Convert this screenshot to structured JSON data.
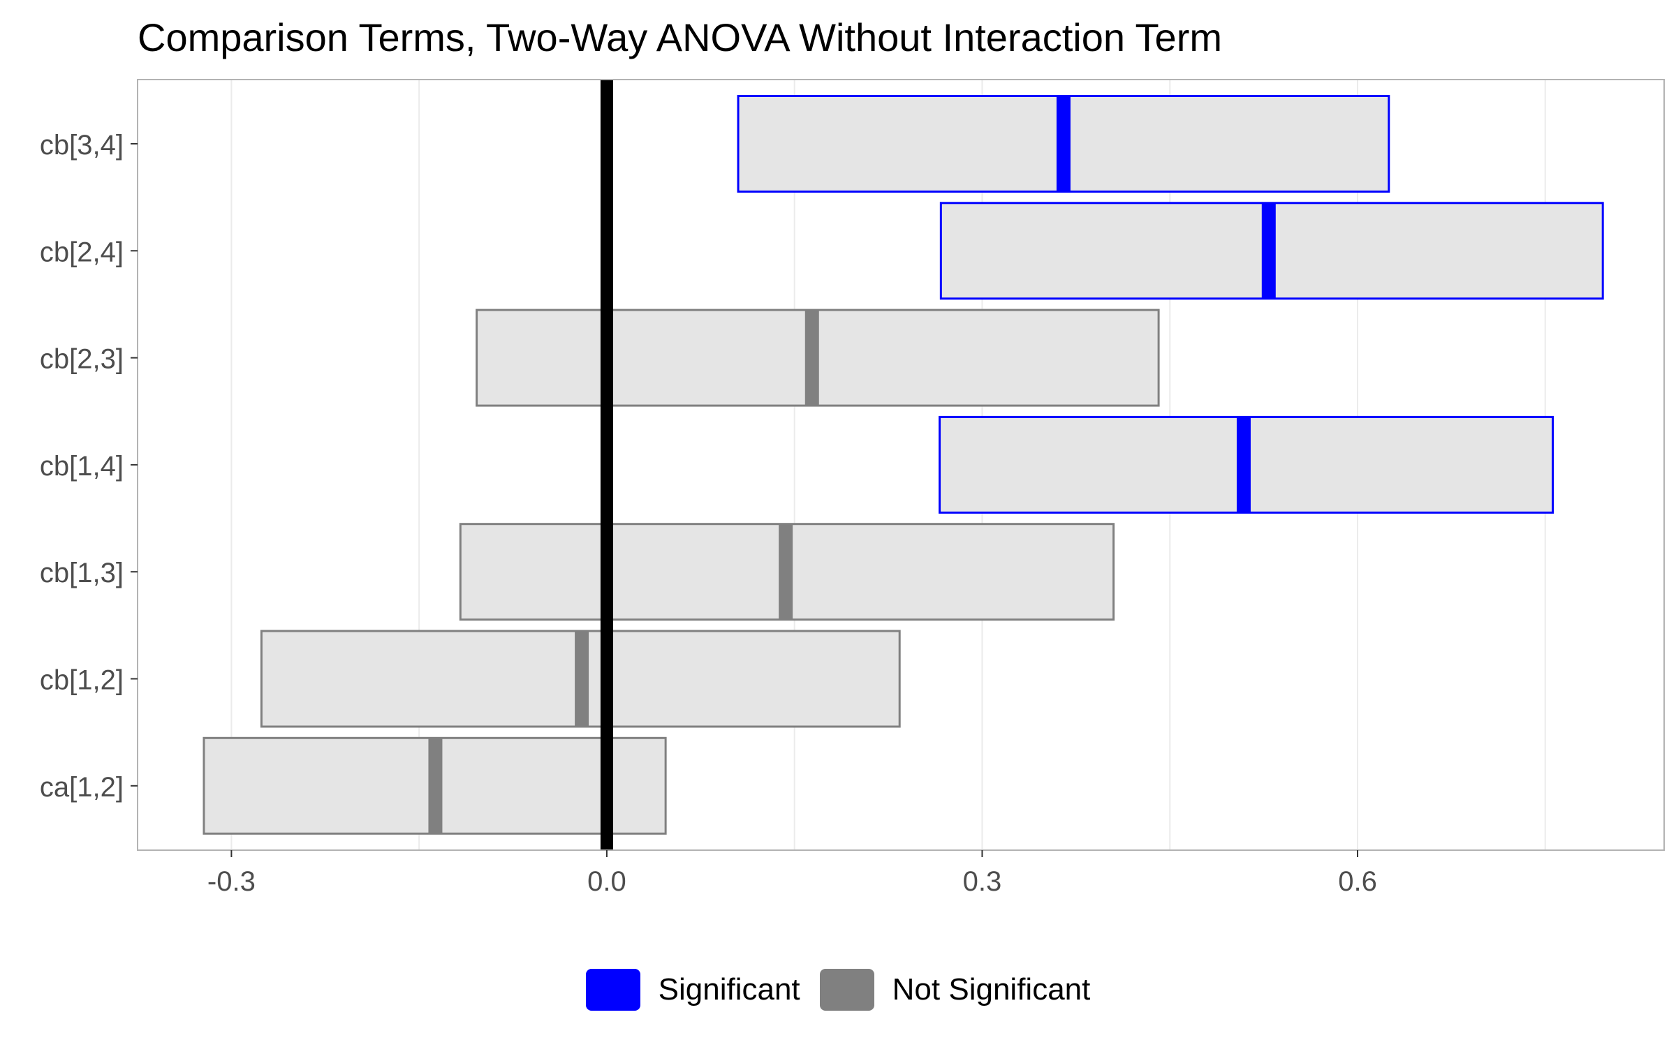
{
  "chart_data": {
    "type": "bar",
    "title": "Comparison Terms, Two-Way ANOVA Without Interaction Term",
    "xlabel": "",
    "ylabel": "",
    "xlim": [
      -0.375,
      0.845
    ],
    "x_ticks": [
      -0.3,
      0.0,
      0.3,
      0.6
    ],
    "x_tick_labels": [
      "-0.3",
      "0.0",
      "0.3",
      "0.6"
    ],
    "reference_line": 0.0,
    "grid": true,
    "legend_position": "bottom",
    "categories": [
      "cb[3,4]",
      "cb[2,4]",
      "cb[2,3]",
      "cb[1,4]",
      "cb[1,3]",
      "cb[1,2]",
      "ca[1,2]"
    ],
    "intervals": [
      {
        "term": "cb[3,4]",
        "lower": 0.105,
        "estimate": 0.365,
        "upper": 0.625,
        "group": "Significant"
      },
      {
        "term": "cb[2,4]",
        "lower": 0.267,
        "estimate": 0.529,
        "upper": 0.796,
        "group": "Significant"
      },
      {
        "term": "cb[2,3]",
        "lower": -0.104,
        "estimate": 0.164,
        "upper": 0.441,
        "group": "Not Significant"
      },
      {
        "term": "cb[1,4]",
        "lower": 0.266,
        "estimate": 0.509,
        "upper": 0.756,
        "group": "Significant"
      },
      {
        "term": "cb[1,3]",
        "lower": -0.117,
        "estimate": 0.143,
        "upper": 0.405,
        "group": "Not Significant"
      },
      {
        "term": "cb[1,2]",
        "lower": -0.276,
        "estimate": -0.02,
        "upper": 0.234,
        "group": "Not Significant"
      },
      {
        "term": "ca[1,2]",
        "lower": -0.322,
        "estimate": -0.137,
        "upper": 0.047,
        "group": "Not Significant"
      }
    ],
    "legend": [
      {
        "label": "Significant",
        "color": "#0000ff"
      },
      {
        "label": "Not Significant",
        "color": "#808080"
      }
    ],
    "colors": {
      "box_fill": "#e5e5e5",
      "grid": "#ebebeb",
      "panel_border": "#b3b3b3",
      "zero_line": "#000000",
      "tick_label": "#4d4d4d"
    }
  }
}
